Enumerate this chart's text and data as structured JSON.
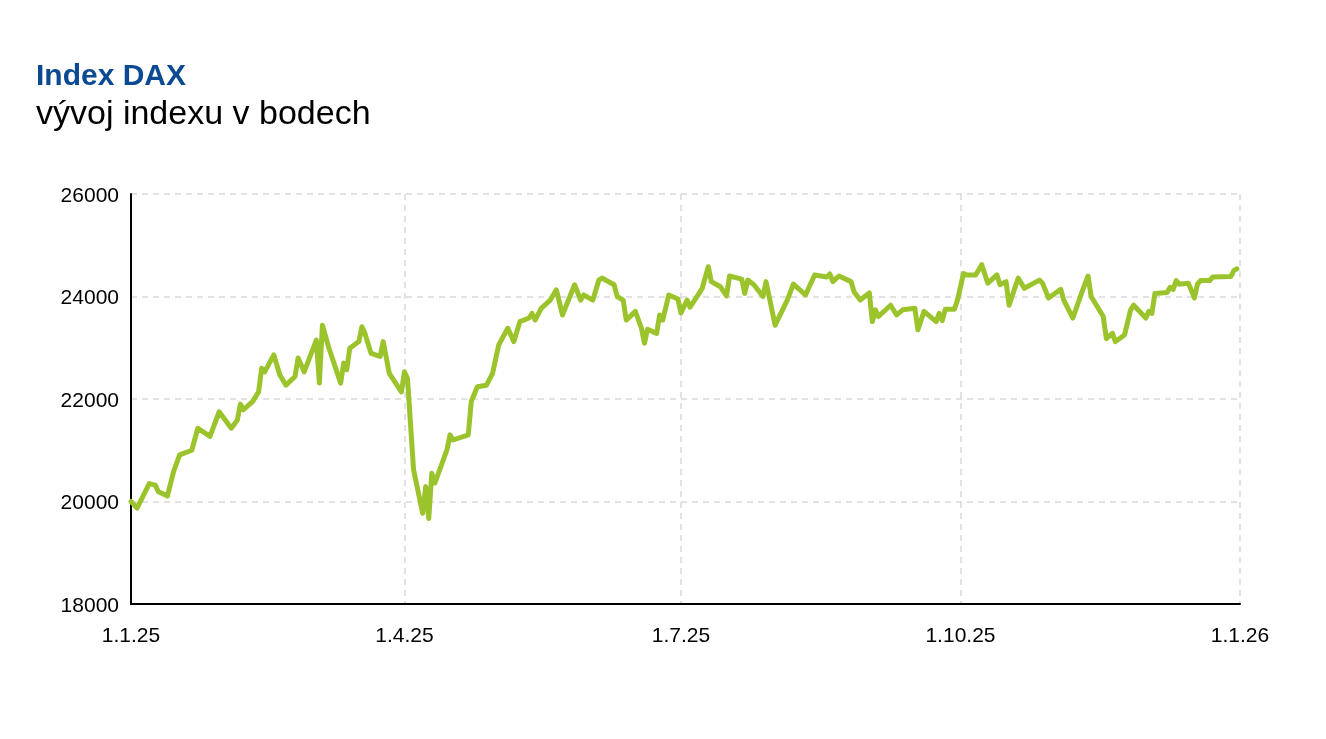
{
  "chart_data": {
    "type": "line",
    "title": "Index DAX",
    "subtitle": "vývoj indexu v bodech",
    "x": [
      "2025-01-01",
      "2025-01-03",
      "2025-01-07",
      "2025-01-09",
      "2025-01-10",
      "2025-01-13",
      "2025-01-15",
      "2025-01-17",
      "2025-01-21",
      "2025-01-23",
      "2025-01-27",
      "2025-01-30",
      "2025-02-03",
      "2025-02-05",
      "2025-02-06",
      "2025-02-07",
      "2025-02-10",
      "2025-02-12",
      "2025-02-13",
      "2025-02-14",
      "2025-02-17",
      "2025-02-19",
      "2025-02-21",
      "2025-02-24",
      "2025-02-25",
      "2025-02-27",
      "2025-03-03",
      "2025-03-04",
      "2025-03-05",
      "2025-03-07",
      "2025-03-11",
      "2025-03-12",
      "2025-03-13",
      "2025-03-14",
      "2025-03-17",
      "2025-03-18",
      "2025-03-19",
      "2025-03-21",
      "2025-03-24",
      "2025-03-25",
      "2025-03-27",
      "2025-03-31",
      "2025-04-01",
      "2025-04-02",
      "2025-04-04",
      "2025-04-07",
      "2025-04-08",
      "2025-04-09",
      "2025-04-10",
      "2025-04-11",
      "2025-04-15",
      "2025-04-16",
      "2025-04-17",
      "2025-04-22",
      "2025-04-23",
      "2025-04-25",
      "2025-04-28",
      "2025-04-30",
      "2025-05-02",
      "2025-05-05",
      "2025-05-07",
      "2025-05-09",
      "2025-05-12",
      "2025-05-13",
      "2025-05-14",
      "2025-05-16",
      "2025-05-19",
      "2025-05-21",
      "2025-05-23",
      "2025-05-27",
      "2025-05-29",
      "2025-05-30",
      "2025-06-02",
      "2025-06-04",
      "2025-06-05",
      "2025-06-09",
      "2025-06-10",
      "2025-06-12",
      "2025-06-13",
      "2025-06-16",
      "2025-06-18",
      "2025-06-19",
      "2025-06-20",
      "2025-06-23",
      "2025-06-24",
      "2025-06-25",
      "2025-06-27",
      "2025-06-30",
      "2025-07-01",
      "2025-07-03",
      "2025-07-04",
      "2025-07-08",
      "2025-07-10",
      "2025-07-11",
      "2025-07-14",
      "2025-07-16",
      "2025-07-17",
      "2025-07-21",
      "2025-07-22",
      "2025-07-23",
      "2025-07-25",
      "2025-07-28",
      "2025-07-29",
      "2025-08-01",
      "2025-08-05",
      "2025-08-07",
      "2025-08-11",
      "2025-08-14",
      "2025-08-18",
      "2025-08-19",
      "2025-08-20",
      "2025-08-22",
      "2025-08-26",
      "2025-08-27",
      "2025-08-29",
      "2025-09-01",
      "2025-09-02",
      "2025-09-03",
      "2025-09-04",
      "2025-09-08",
      "2025-09-10",
      "2025-09-12",
      "2025-09-16",
      "2025-09-17",
      "2025-09-19",
      "2025-09-23",
      "2025-09-24",
      "2025-09-25",
      "2025-09-26",
      "2025-09-29",
      "2025-09-30",
      "2025-10-02",
      "2025-10-03",
      "2025-10-06",
      "2025-10-08",
      "2025-10-10",
      "2025-10-13",
      "2025-10-14",
      "2025-10-16",
      "2025-10-17",
      "2025-10-20",
      "2025-10-22",
      "2025-10-27",
      "2025-10-28",
      "2025-10-30",
      "2025-11-03",
      "2025-11-04",
      "2025-11-07",
      "2025-11-10",
      "2025-11-12",
      "2025-11-13",
      "2025-11-17",
      "2025-11-18",
      "2025-11-20",
      "2025-11-21",
      "2025-11-24",
      "2025-11-26",
      "2025-11-27",
      "2025-12-01",
      "2025-12-02",
      "2025-12-03",
      "2025-12-04",
      "2025-12-08",
      "2025-12-09",
      "2025-12-10",
      "2025-12-11",
      "2025-12-12",
      "2025-12-15",
      "2025-12-17",
      "2025-12-18",
      "2025-12-19",
      "2025-12-22",
      "2025-12-23",
      "2025-12-29",
      "2025-12-30",
      "2025-12-31"
    ],
    "series": [
      {
        "color": "#9bc32c",
        "values": [
          20000,
          19870,
          20350,
          20320,
          20190,
          20110,
          20580,
          20910,
          21000,
          21430,
          21270,
          21750,
          21430,
          21590,
          21900,
          21790,
          21950,
          22140,
          22600,
          22530,
          22860,
          22470,
          22270,
          22440,
          22800,
          22530,
          23150,
          22310,
          23440,
          23020,
          22310,
          22700,
          22570,
          22990,
          23120,
          23410,
          23280,
          22890,
          22830,
          23120,
          22500,
          22140,
          22530,
          22400,
          20620,
          19770,
          20290,
          19670,
          20550,
          20360,
          21010,
          21300,
          21200,
          21300,
          21950,
          22240,
          22270,
          22500,
          23050,
          23380,
          23120,
          23510,
          23580,
          23670,
          23540,
          23770,
          23930,
          24130,
          23640,
          24230,
          23930,
          24030,
          23930,
          24320,
          24360,
          24230,
          24000,
          23930,
          23540,
          23710,
          23380,
          23090,
          23360,
          23280,
          23640,
          23540,
          24030,
          23950,
          23680,
          23930,
          23790,
          24160,
          24580,
          24290,
          24190,
          24010,
          24400,
          24340,
          24060,
          24320,
          24230,
          24000,
          24290,
          23440,
          23930,
          24240,
          24030,
          24420,
          24380,
          24440,
          24290,
          24400,
          24290,
          24090,
          23930,
          24070,
          23510,
          23740,
          23610,
          23830,
          23640,
          23740,
          23770,
          23350,
          23710,
          23510,
          23670,
          23530,
          23750,
          23750,
          23930,
          24450,
          24420,
          24420,
          24620,
          24260,
          24420,
          24230,
          24290,
          23830,
          24360,
          24160,
          24320,
          24260,
          23970,
          24140,
          23930,
          23580,
          24090,
          24400,
          24000,
          23610,
          23180,
          23280,
          23120,
          23250,
          23740,
          23830,
          23580,
          23710,
          23670,
          24060,
          24080,
          24180,
          24140,
          24310,
          24240,
          24260,
          23970,
          24240,
          24310,
          24310,
          24380,
          24390,
          24510,
          24540
        ]
      }
    ],
    "xlim": [
      "2025-01-01",
      "2026-01-01"
    ],
    "xticks": [
      {
        "value": "2025-01-01",
        "label": "1.1.25"
      },
      {
        "value": "2025-04-01",
        "label": "1.4.25"
      },
      {
        "value": "2025-07-01",
        "label": "1.7.25"
      },
      {
        "value": "2025-10-01",
        "label": "1.10.25"
      },
      {
        "value": "2026-01-01",
        "label": "1.1.26"
      }
    ],
    "ylim": [
      18000,
      26000
    ],
    "yticks": [
      18000,
      20000,
      22000,
      24000,
      26000
    ],
    "grid": true,
    "marker": "none",
    "line_style": "solid"
  }
}
